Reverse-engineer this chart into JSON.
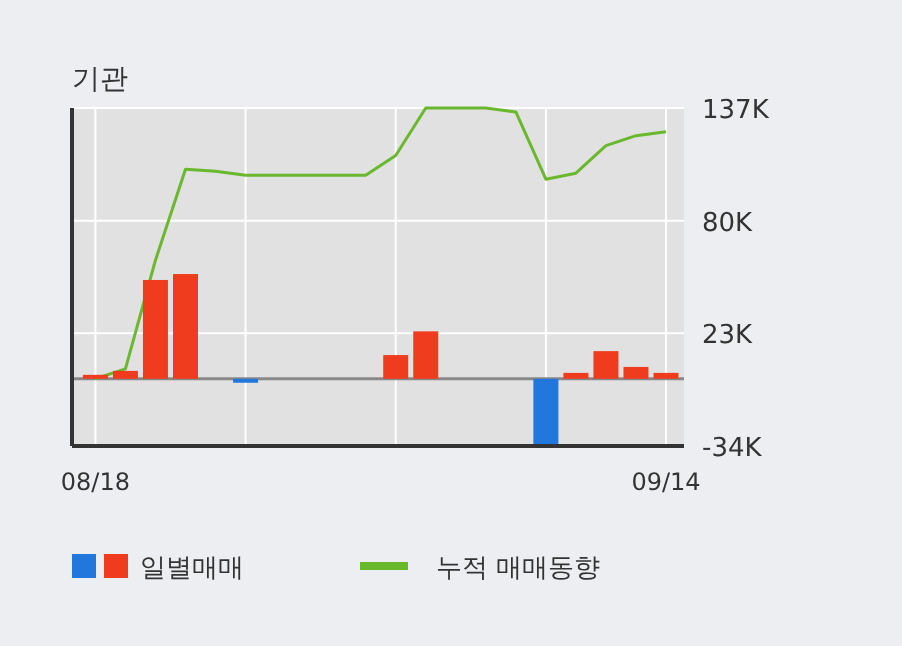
{
  "chart_data": {
    "type": "bar",
    "title": "기관",
    "categories": [
      "08/18",
      null,
      null,
      null,
      null,
      null,
      null,
      null,
      null,
      null,
      null,
      null,
      null,
      null,
      null,
      null,
      null,
      null,
      null,
      "09/14"
    ],
    "series": [
      {
        "name": "일별매매",
        "colors": [
          "#f03c1e",
          "#f03c1e",
          "#f03c1e",
          "#f03c1e",
          null,
          "#2277dd",
          null,
          null,
          null,
          null,
          "#f03c1e",
          "#f03c1e",
          null,
          null,
          null,
          "#2277dd",
          "#f03c1e",
          "#f03c1e",
          "#f03c1e",
          "#f03c1e"
        ],
        "values": [
          2000,
          4000,
          50000,
          53000,
          0,
          -2000,
          0,
          0,
          0,
          0,
          12000,
          24000,
          0,
          0,
          0,
          -34000,
          3000,
          14000,
          6000,
          3000
        ]
      },
      {
        "name": "누적 매매동향",
        "type": "line",
        "color": "#6ab82e",
        "values": [
          0,
          5000,
          60000,
          106000,
          105000,
          103000,
          103000,
          103000,
          103000,
          103000,
          113000,
          137000,
          137000,
          137000,
          135000,
          101000,
          104000,
          118000,
          123000,
          125000
        ]
      }
    ],
    "ylim": [
      -34000,
      137000
    ],
    "yticks": [
      {
        "value": 137000,
        "label": "137K"
      },
      {
        "value": 80000,
        "label": "80K"
      },
      {
        "value": 23000,
        "label": "23K"
      },
      {
        "value": -34000,
        "label": "-34K"
      }
    ],
    "grid": true,
    "legend": "bottom"
  }
}
